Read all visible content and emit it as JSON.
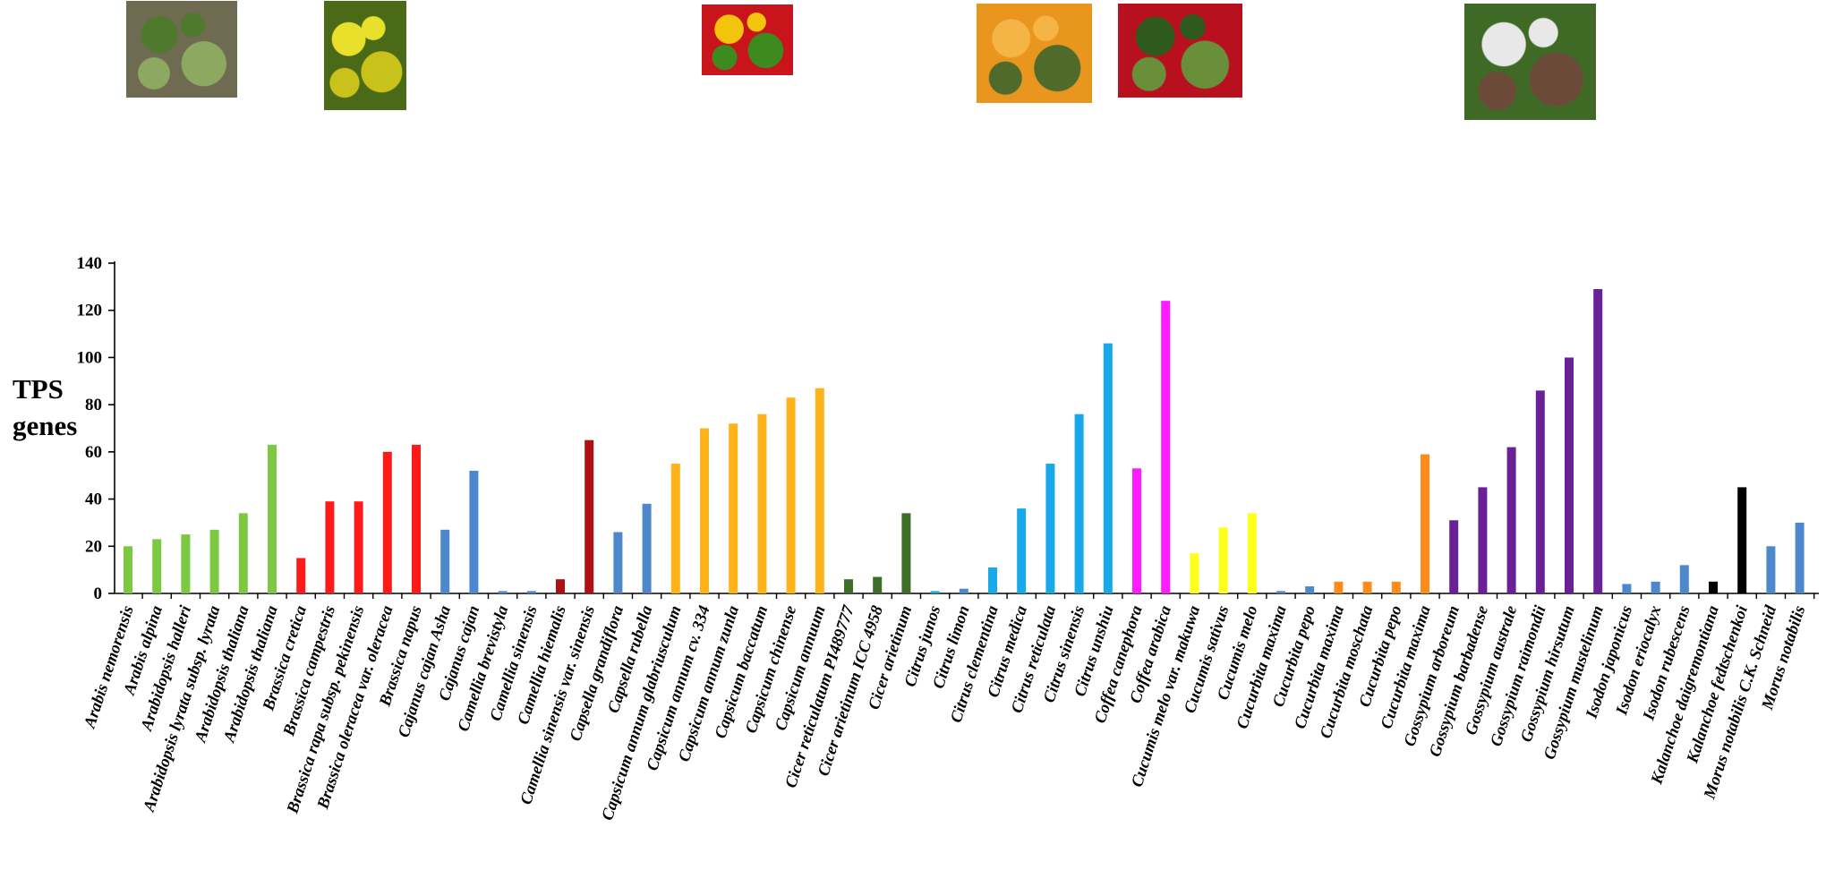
{
  "photos": [
    {
      "name": "arabidopsis-photo",
      "subject": "Arabidopsis rosette plant in soil",
      "colors": [
        "#6f6a52",
        "#4f7a2e",
        "#8da860"
      ]
    },
    {
      "name": "brassica-photo",
      "subject": "Yellow Brassica flowers",
      "colors": [
        "#4a6a18",
        "#e8e02a",
        "#c9c21a"
      ]
    },
    {
      "name": "capsicum-photo",
      "subject": "Red, yellow and green peppers",
      "colors": [
        "#c8141a",
        "#f2c40c",
        "#3c8a20"
      ]
    },
    {
      "name": "citrus-photo",
      "subject": "Orange citrus fruits with leaves",
      "colors": [
        "#e8961e",
        "#f4b446",
        "#4f6a2a"
      ]
    },
    {
      "name": "coffea-photo",
      "subject": "Red coffee cherries on branch",
      "colors": [
        "#b8101e",
        "#2f5a1e",
        "#6a8f3a"
      ]
    },
    {
      "name": "gossypium-photo",
      "subject": "Cotton plant with open boll",
      "colors": [
        "#3f6a26",
        "#e8e8e8",
        "#6b4a3a"
      ]
    }
  ],
  "chart_data": {
    "type": "bar",
    "ylabel": [
      "TPS",
      "genes"
    ],
    "ylim": [
      0,
      140
    ],
    "yticks": [
      0,
      20,
      40,
      60,
      80,
      100,
      120,
      140
    ],
    "grid": false,
    "categories": [
      "Arabis nemorensis",
      "Arabis alpina",
      "Arabidopsis halleri",
      "Arabidopsis lyrata subsp. lyrata",
      "Arabidopsis thaliana",
      "Arabidopsis thaliana",
      "Brassica cretica",
      "Brassica campestris",
      "Brassica rapa subsp. pekinensis",
      "Brassica oleracea var. oleracea",
      "Brassica napus",
      "Cajanus cajan Asha",
      "Cajanus cajan",
      "Camellia brevistyla",
      "Camellia sinensis",
      "Camellia hiemalis",
      "Camellia sinensis var. sinensis",
      "Capsella grandiflora",
      "Capsella rubella",
      "Capsicum annum glabriusculum",
      "Capsicum annum cv. 334",
      "Capsicum annum zunla",
      "Capsicum baccatum",
      "Capsicum chinense",
      "Capsicum annuum",
      "Cicer reticulatum PI489777",
      "Cicer arietinum ICC 4958",
      "Cicer arietinum",
      "Citrus junos",
      "Citrus limon",
      "Citrus clementina",
      "Citrus medica",
      "Citrus reticulata",
      "Citrus sinensis",
      "Citrus unshiu",
      "Coffea canephora",
      "Coffea arabica",
      "Cucumis melo var. makuwa",
      "Cucumis sativus",
      "Cucumis melo",
      "Cucurbita maxima",
      "Cucurbita pepo",
      "Cucurbita maxima",
      "Cucurbita moschata",
      "Cucurbita pepo",
      "Cucurbita maxima",
      "Gossypium arboreum",
      "Gossypium barbadense",
      "Gossypium australe",
      "Gossypium raimondii",
      "Gossypium hirsutum",
      "Gossypium mustelinum",
      "Isodon japonicus",
      "Isodon eriocalyx",
      "Isodon rubescens",
      "Kalanchoe daigremontiana",
      "Kalanchoe fedtschenkoi",
      "Morus notabilis C.K. Schneid",
      "Morus notabilis"
    ],
    "values": [
      20,
      23,
      25,
      27,
      34,
      63,
      15,
      39,
      39,
      60,
      63,
      27,
      52,
      1,
      1,
      6,
      65,
      26,
      38,
      55,
      70,
      72,
      76,
      83,
      87,
      6,
      7,
      34,
      1,
      2,
      11,
      36,
      55,
      76,
      106,
      53,
      124,
      17,
      28,
      34,
      1,
      3,
      5,
      5,
      5,
      59,
      31,
      45,
      62,
      86,
      100,
      129,
      4,
      5,
      12,
      5,
      45,
      20,
      30
    ],
    "colors": [
      "#7dc843",
      "#7dc843",
      "#7dc843",
      "#7dc843",
      "#7dc843",
      "#7dc843",
      "#ff1a1a",
      "#ff1a1a",
      "#ff1a1a",
      "#ff1a1a",
      "#ff1a1a",
      "#4d88cc",
      "#4d88cc",
      "#4d88cc",
      "#4d88cc",
      "#b01010",
      "#b01010",
      "#4d88cc",
      "#4d88cc",
      "#ffb31a",
      "#ffb31a",
      "#ffb31a",
      "#ffb31a",
      "#ffb31a",
      "#ffb31a",
      "#3d6e26",
      "#3d6e26",
      "#3d6e26",
      "#19a8e8",
      "#4d88cc",
      "#19a8e8",
      "#19a8e8",
      "#19a8e8",
      "#19a8e8",
      "#19a8e8",
      "#ff1aff",
      "#ff1aff",
      "#ffff1a",
      "#ffff1a",
      "#ffff1a",
      "#4d88cc",
      "#4d88cc",
      "#ff8c1a",
      "#ff8c1a",
      "#ff8c1a",
      "#ff8c1a",
      "#6a2096",
      "#6a2096",
      "#6a2096",
      "#6a2096",
      "#6a2096",
      "#6a2096",
      "#4d88cc",
      "#4d88cc",
      "#4d88cc",
      "#000000",
      "#000000",
      "#4d88cc",
      "#4d88cc"
    ]
  }
}
